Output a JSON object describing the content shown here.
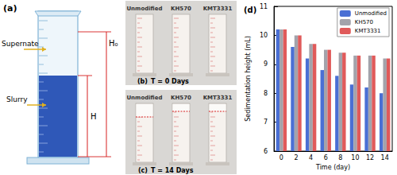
{
  "chart_data": {
    "type": "bar",
    "title": "(d)",
    "x_label": "Time (day)",
    "y_label": "Sedimentation height (mL)",
    "categories": [
      "0",
      "2",
      "4",
      "6",
      "8",
      "10",
      "12",
      "14"
    ],
    "series": [
      {
        "name": "Unmodified",
        "color": "#4a6fd4",
        "values": [
          10.2,
          9.6,
          9.2,
          8.8,
          8.6,
          8.3,
          8.2,
          8.0
        ]
      },
      {
        "name": "KH570",
        "color": "#a3a3ab",
        "values": [
          10.2,
          10.0,
          9.7,
          9.5,
          9.4,
          9.3,
          9.3,
          9.2
        ]
      },
      {
        "name": "KMT3331",
        "color": "#e05a5a",
        "values": [
          10.2,
          10.0,
          9.7,
          9.5,
          9.4,
          9.3,
          9.3,
          9.2
        ]
      }
    ],
    "ylim": [
      6,
      11
    ],
    "yticks": [
      6,
      7,
      8,
      9,
      10,
      11
    ],
    "grid": false,
    "legend": "upper right"
  },
  "panels": {
    "a": {
      "label": "(a)",
      "supernate": "Supernate",
      "slurry": "Slurry",
      "h": "H",
      "h0": "H₀"
    },
    "b": {
      "label": "(b)",
      "caption": "T = 0 Days",
      "samples": [
        "Unmodified",
        "KH570",
        "KMT3331"
      ]
    },
    "c": {
      "label": "(c)",
      "caption": "T = 14 Days",
      "samples": [
        "Unmodified",
        "KH570",
        "KMT3331"
      ]
    }
  }
}
